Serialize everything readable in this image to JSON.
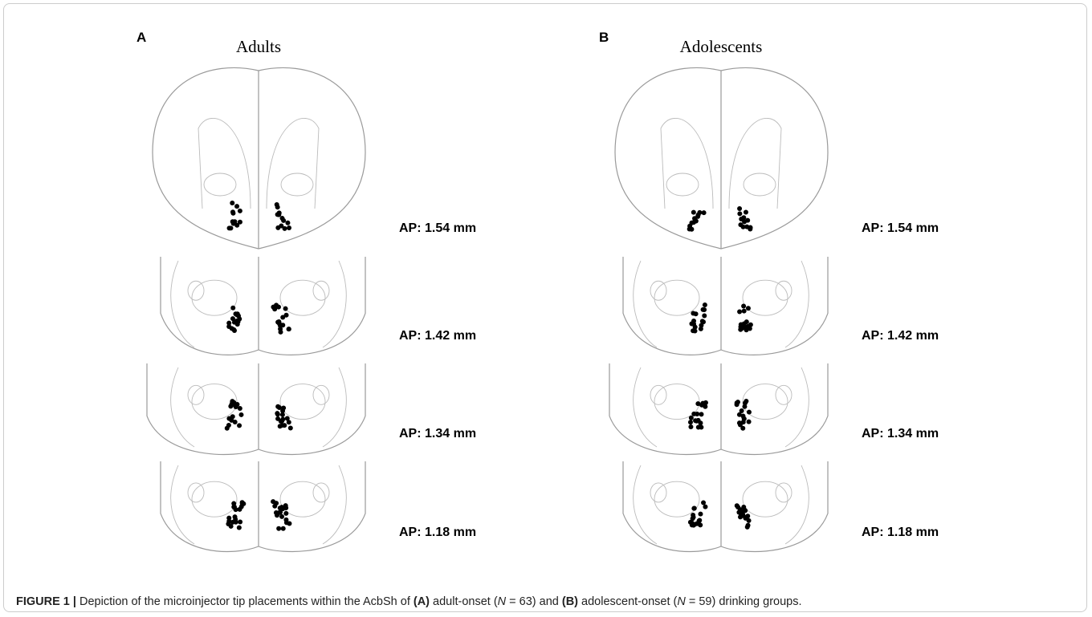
{
  "panels": [
    {
      "letter": "A",
      "title": "Adults",
      "sections": [
        "AP: 1.54 mm",
        "AP: 1.42 mm",
        "AP: 1.34 mm",
        "AP: 1.18 mm"
      ]
    },
    {
      "letter": "B",
      "title": "Adolescents",
      "sections": [
        "AP: 1.54 mm",
        "AP: 1.42 mm",
        "AP: 1.34 mm",
        "AP: 1.18 mm"
      ]
    }
  ],
  "caption": {
    "label": "FIGURE 1 |",
    "parts": [
      {
        "text": " Depiction of the microinjector tip placements within the AcbSh of ",
        "style": "normal"
      },
      {
        "text": "(A)",
        "style": "bold"
      },
      {
        "text": " adult-onset (",
        "style": "normal"
      },
      {
        "text": "N",
        "style": "italic"
      },
      {
        "text": " = 63) and ",
        "style": "normal"
      },
      {
        "text": "(B)",
        "style": "bold"
      },
      {
        "text": " adolescent-onset (",
        "style": "normal"
      },
      {
        "text": "N",
        "style": "italic"
      },
      {
        "text": " = 59) drinking groups.",
        "style": "normal"
      }
    ]
  }
}
